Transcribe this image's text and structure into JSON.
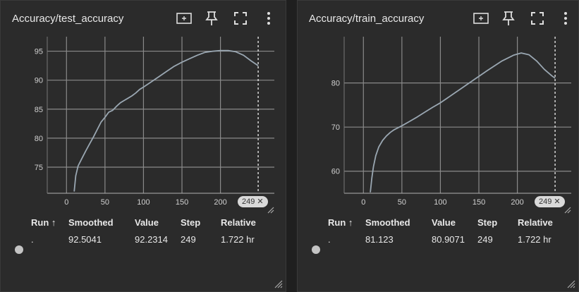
{
  "cards": [
    {
      "id": "test",
      "title": "Accuracy/test_accuracy",
      "step_tag": "249 ✕",
      "table": {
        "headers": {
          "run": "Run ↑",
          "smoothed": "Smoothed",
          "value": "Value",
          "step": "Step",
          "relative": "Relative"
        },
        "row": {
          "run": ".",
          "smoothed": "92.5041",
          "value": "92.2314",
          "step": "249",
          "relative": "1.722 hr"
        }
      }
    },
    {
      "id": "train",
      "title": "Accuracy/train_accuracy",
      "step_tag": "249 ✕",
      "table": {
        "headers": {
          "run": "Run ↑",
          "smoothed": "Smoothed",
          "value": "Value",
          "step": "Step",
          "relative": "Relative"
        },
        "row": {
          "run": ".",
          "smoothed": "81.123",
          "value": "80.9071",
          "step": "249",
          "relative": "1.722 hr"
        }
      }
    }
  ],
  "colors": {
    "background": "#2b2b2b",
    "line": "#9aa7b2",
    "grid": "#8a8a8a",
    "text": "#e8e8e8"
  },
  "icons": [
    "fit-domain-icon",
    "pin-icon",
    "fullscreen-icon",
    "more-vert-icon"
  ],
  "chart_data": [
    {
      "type": "line",
      "title": "Accuracy/test_accuracy",
      "xlabel": "",
      "ylabel": "",
      "xlim": [
        -25,
        270
      ],
      "ylim": [
        70.5,
        97.5
      ],
      "xticks": [
        0,
        50,
        100,
        150,
        200
      ],
      "yticks": [
        75,
        80,
        85,
        90,
        95
      ],
      "grid": true,
      "cursor_step": 249,
      "series": [
        {
          "x": [
            10,
            12,
            15,
            20,
            25,
            30,
            35,
            40,
            45,
            50,
            55,
            60,
            65,
            70,
            75,
            80,
            85,
            90,
            95,
            100,
            110,
            120,
            130,
            140,
            150,
            160,
            170,
            180,
            190,
            200,
            210,
            220,
            230,
            240,
            249
          ],
          "y": [
            70.8,
            73.5,
            75.2,
            76.5,
            77.8,
            79.0,
            80.2,
            81.5,
            82.8,
            83.6,
            84.5,
            84.8,
            85.5,
            86.1,
            86.5,
            86.9,
            87.3,
            87.8,
            88.4,
            88.8,
            89.7,
            90.6,
            91.5,
            92.4,
            93.1,
            93.7,
            94.3,
            94.8,
            95.0,
            95.1,
            95.1,
            94.9,
            94.3,
            93.3,
            92.5
          ]
        }
      ]
    },
    {
      "type": "line",
      "title": "Accuracy/train_accuracy",
      "xlabel": "",
      "ylabel": "",
      "xlim": [
        -25,
        270
      ],
      "ylim": [
        55,
        90.5
      ],
      "xticks": [
        0,
        50,
        100,
        150,
        200
      ],
      "yticks": [
        60,
        70,
        80
      ],
      "grid": true,
      "cursor_step": 249,
      "series": [
        {
          "x": [
            9,
            11,
            13,
            16,
            20,
            25,
            30,
            35,
            40,
            50,
            60,
            70,
            80,
            90,
            100,
            120,
            140,
            160,
            180,
            195,
            205,
            215,
            225,
            235,
            245,
            249
          ],
          "y": [
            55.2,
            58.5,
            61.0,
            63.5,
            65.5,
            67.0,
            68.0,
            68.8,
            69.4,
            70.3,
            71.3,
            72.3,
            73.4,
            74.5,
            75.5,
            77.9,
            80.3,
            82.7,
            85.0,
            86.3,
            86.8,
            86.4,
            85.0,
            83.1,
            81.6,
            81.1
          ]
        }
      ]
    }
  ]
}
